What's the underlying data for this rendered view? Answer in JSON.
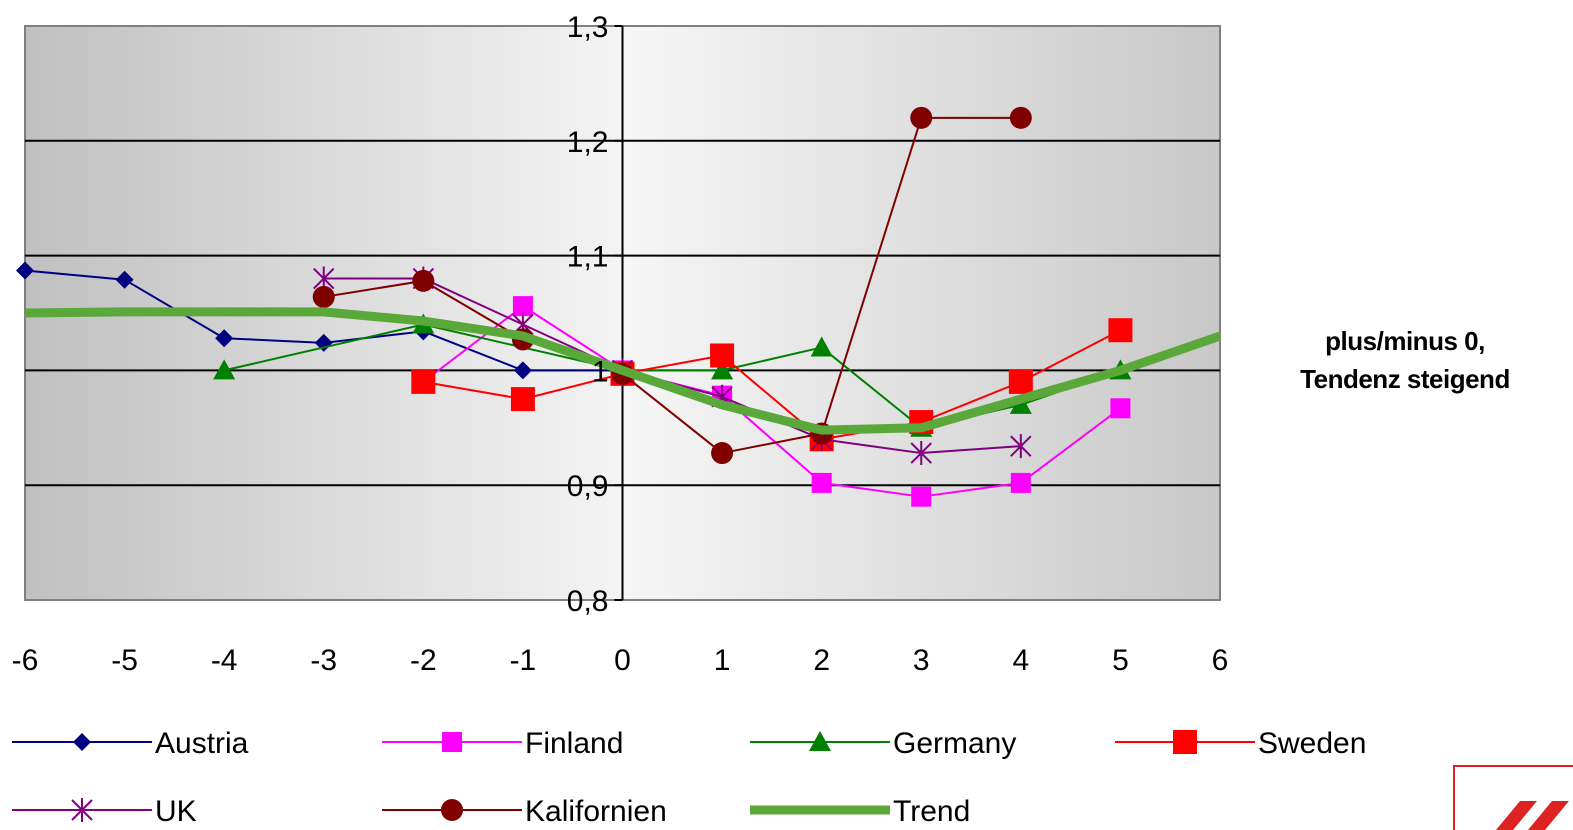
{
  "chart_data": {
    "type": "line",
    "title": "",
    "xlabel": "",
    "ylabel": "",
    "x": [
      -6,
      -5,
      -4,
      -3,
      -2,
      -1,
      0,
      1,
      2,
      3,
      4,
      5,
      6
    ],
    "xlim": [
      -6,
      6
    ],
    "ylim": [
      0.8,
      1.3
    ],
    "x_tick_labels": [
      "-6",
      "-5",
      "-4",
      "-3",
      "-2",
      "-1",
      "0",
      "1",
      "2",
      "3",
      "4",
      "5",
      "6"
    ],
    "y_ticks": [
      0.8,
      0.9,
      1.0,
      1.1,
      1.2,
      1.3
    ],
    "y_tick_labels": [
      "0,8",
      "0,9",
      "1",
      "1,1",
      "1,2",
      "1,3"
    ],
    "grid": true,
    "legend_position": "bottom",
    "annotation": [
      "plus/minus 0,",
      "Tendenz steigend"
    ],
    "series": [
      {
        "name": "Austria",
        "color": "#000080",
        "marker": "diamond",
        "x": [
          -6,
          -5,
          -4,
          -3,
          -2,
          -1,
          0
        ],
        "values": [
          1.087,
          1.079,
          1.028,
          1.024,
          1.034,
          1.0,
          1.0
        ]
      },
      {
        "name": "Finland",
        "color": "#ff00ff",
        "marker": "square",
        "x": [
          -2,
          -1,
          0,
          1,
          2,
          3,
          4,
          5
        ],
        "values": [
          0.99,
          1.056,
          1.0,
          0.978,
          0.902,
          0.89,
          0.902,
          0.967
        ]
      },
      {
        "name": "Germany",
        "color": "#008000",
        "marker": "triangle",
        "x": [
          -4,
          -2,
          0,
          1,
          2,
          3,
          4,
          5
        ],
        "values": [
          1.0,
          1.04,
          1.0,
          1.0,
          1.02,
          0.95,
          0.97,
          1.0
        ]
      },
      {
        "name": "Sweden",
        "color": "#ff0000",
        "marker": "square-large",
        "x": [
          -2,
          -1,
          0,
          1,
          2,
          3,
          4,
          5
        ],
        "values": [
          0.99,
          0.975,
          0.997,
          1.013,
          0.94,
          0.955,
          0.99,
          1.035
        ]
      },
      {
        "name": "UK",
        "color": "#800080",
        "marker": "asterisk",
        "x": [
          -3,
          -2,
          -1,
          0,
          1,
          2,
          3,
          4
        ],
        "values": [
          1.08,
          1.08,
          1.04,
          1.0,
          0.977,
          0.94,
          0.928,
          0.934
        ]
      },
      {
        "name": "Kalifornien",
        "color": "#800000",
        "marker": "circle",
        "x": [
          -3,
          -2,
          -1,
          0,
          1,
          2,
          3,
          4
        ],
        "values": [
          1.064,
          1.078,
          1.027,
          0.997,
          0.928,
          0.945,
          1.22,
          1.22
        ]
      },
      {
        "name": "Trend",
        "color": "#5aa83a",
        "marker": "none",
        "thick": true,
        "x": [
          -6,
          -5,
          -4,
          -3,
          -2,
          -1,
          0,
          1,
          2,
          3,
          4,
          5,
          6
        ],
        "values": [
          1.05,
          1.051,
          1.051,
          1.051,
          1.043,
          1.03,
          1.0,
          0.97,
          0.948,
          0.95,
          0.975,
          1.0,
          1.03
        ]
      }
    ]
  }
}
